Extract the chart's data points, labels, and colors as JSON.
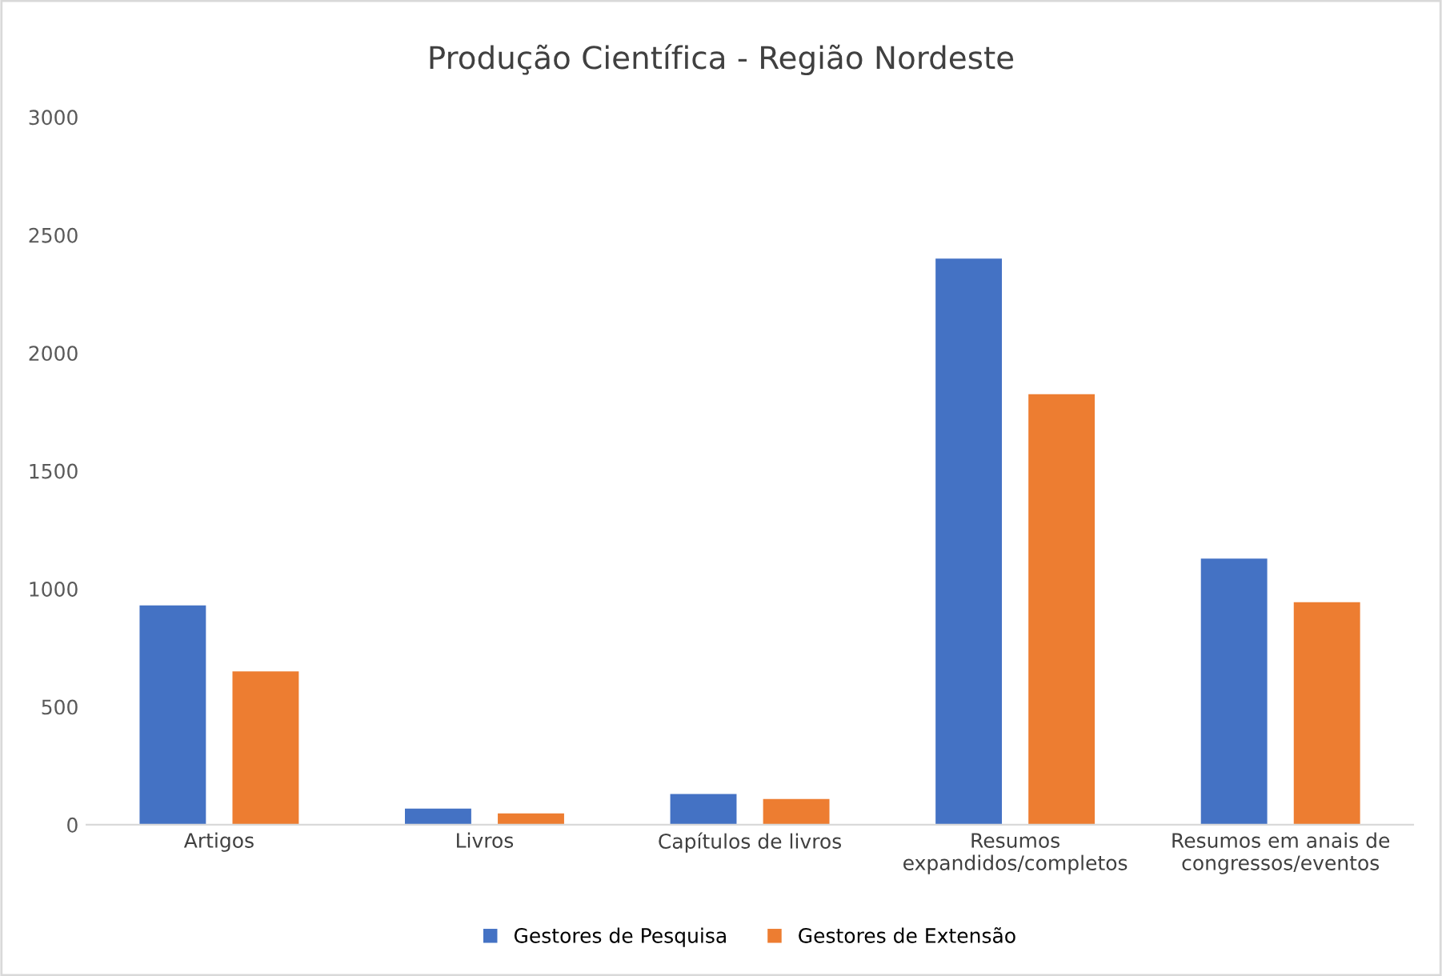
{
  "chart_data": {
    "type": "bar",
    "title": "Produção Científica - Região Nordeste",
    "categories": [
      "Artigos",
      "Livros",
      "Capítulos de livros",
      "Resumos\nexpandidos/completos",
      "Resumos em anais de\ncongressos/eventos"
    ],
    "series": [
      {
        "name": "Gestores de Pesquisa",
        "color": "#4472c4",
        "values": [
          930,
          68,
          130,
          2400,
          1128
        ]
      },
      {
        "name": "Gestores de Extensão",
        "color": "#ed7d31",
        "values": [
          650,
          48,
          109,
          1825,
          943
        ]
      }
    ],
    "ylim": [
      0,
      3000
    ],
    "yticks": [
      0,
      500,
      1000,
      1500,
      2000,
      2500,
      3000
    ],
    "grid": false,
    "legend": "bottom"
  }
}
